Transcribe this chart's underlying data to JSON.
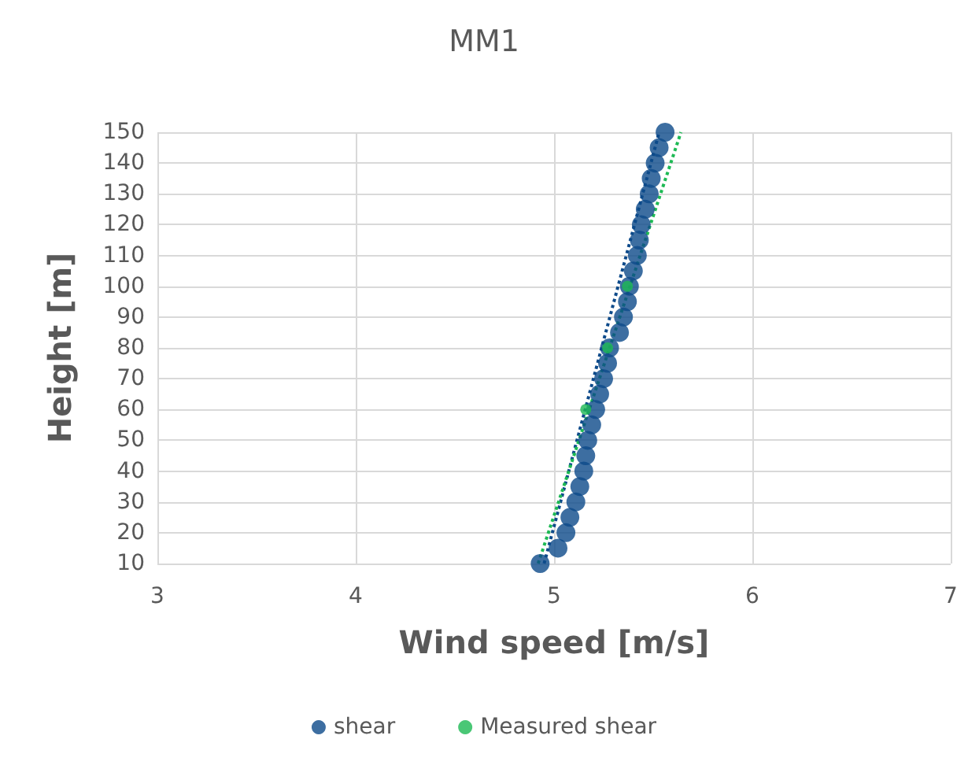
{
  "chart_data": {
    "type": "scatter",
    "title": "MM1",
    "xlabel": "Wind speed [m/s]",
    "ylabel": "Height [m]",
    "xlim": [
      3,
      7
    ],
    "xticks": [
      3,
      4,
      5,
      6,
      7
    ],
    "ylim": [
      10,
      150
    ],
    "yticks": [
      10,
      20,
      30,
      40,
      50,
      60,
      70,
      80,
      90,
      100,
      110,
      120,
      130,
      140,
      150
    ],
    "grid": true,
    "legend": "bottom",
    "marker": "circle",
    "series": [
      {
        "name": "shear",
        "color": "#0d4a8a",
        "x": [
          4.93,
          5.02,
          5.06,
          5.08,
          5.11,
          5.13,
          5.15,
          5.16,
          5.17,
          5.19,
          5.21,
          5.23,
          5.25,
          5.27,
          5.28,
          5.33,
          5.35,
          5.37,
          5.38,
          5.4,
          5.42,
          5.43,
          5.44,
          5.46,
          5.48,
          5.49,
          5.51,
          5.53,
          5.56
        ],
        "values": [
          10,
          15,
          20,
          25,
          30,
          35,
          40,
          45,
          50,
          55,
          60,
          65,
          70,
          75,
          80,
          85,
          90,
          95,
          100,
          105,
          110,
          115,
          120,
          125,
          130,
          135,
          140,
          145,
          150
        ]
      },
      {
        "name": "Measured shear",
        "color": "#1db954",
        "x": [
          5.16,
          5.27,
          5.37
        ],
        "values": [
          60,
          80,
          100
        ]
      },
      {
        "type": "line",
        "line_style": "dotted",
        "marker": "none",
        "color": "#0d4a8a",
        "x": [
          4.95,
          5.53
        ],
        "values": [
          10,
          150
        ]
      },
      {
        "type": "line",
        "line_style": "dotted",
        "marker": "none",
        "color": "#1db954",
        "x": [
          4.92,
          5.64
        ],
        "values": [
          10,
          150
        ]
      }
    ]
  }
}
